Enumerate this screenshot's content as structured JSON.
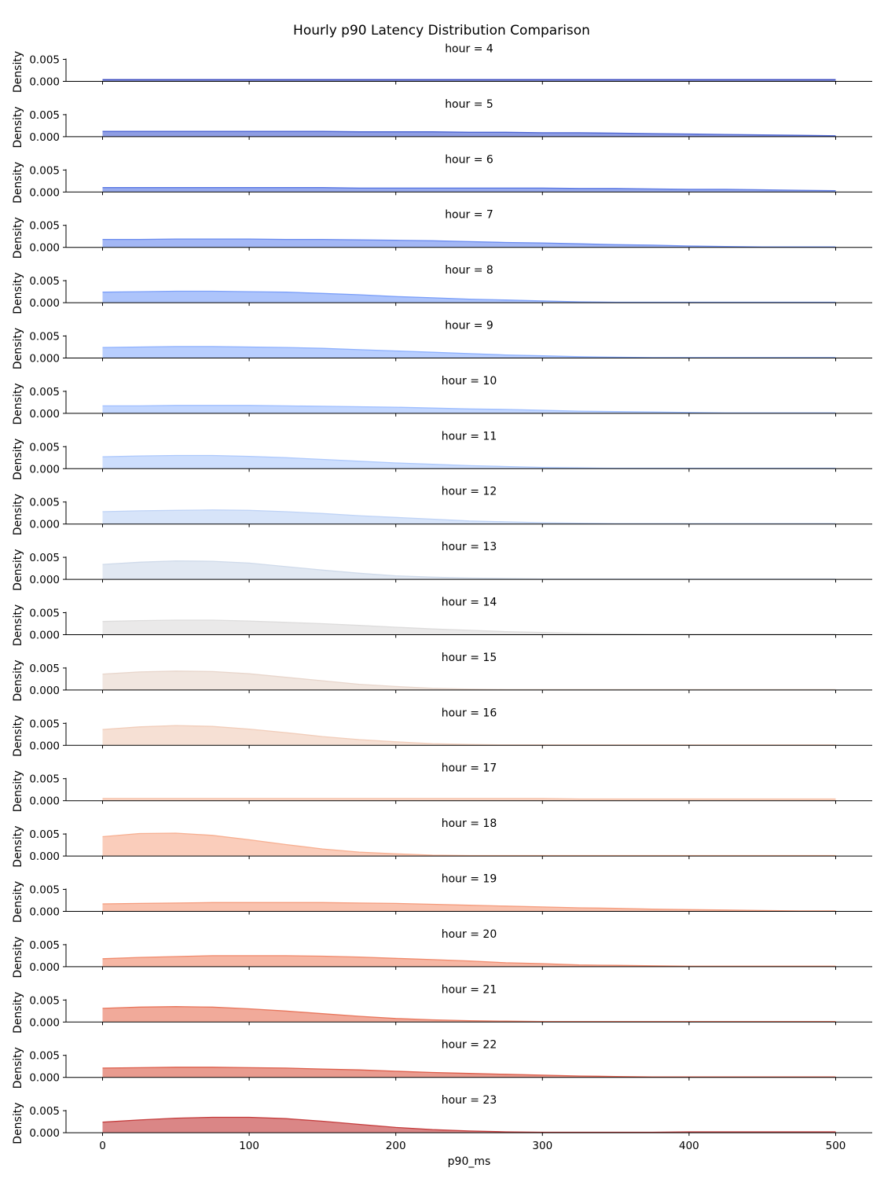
{
  "chart_data": {
    "type": "area",
    "title": "Hourly p90 Latency Distribution Comparison",
    "xlabel": "p90_ms",
    "ylabel": "Density",
    "xlim": [
      -25,
      525
    ],
    "xticks": [
      "0",
      "100",
      "200",
      "300",
      "400",
      "500"
    ],
    "ylim": [
      0,
      0.0055
    ],
    "yticks": [
      "0.000",
      "0.005"
    ],
    "grid": false,
    "legend": "none",
    "x": [
      0,
      25,
      50,
      75,
      100,
      125,
      150,
      175,
      200,
      225,
      250,
      275,
      300,
      325,
      350,
      375,
      400,
      425,
      450,
      475,
      500
    ],
    "series": [
      {
        "name": "hour = 4",
        "color": "#3b4cc0",
        "values": [
          0.0004,
          0.0004,
          0.0004,
          0.0004,
          0.0004,
          0.0004,
          0.0004,
          0.0004,
          0.0004,
          0.0004,
          0.0004,
          0.0004,
          0.0004,
          0.0004,
          0.0004,
          0.0004,
          0.0004,
          0.0004,
          0.0004,
          0.0004,
          0.0004
        ]
      },
      {
        "name": "hour = 5",
        "color": "#4a63d3",
        "values": [
          0.0012,
          0.0012,
          0.0012,
          0.0012,
          0.0012,
          0.0012,
          0.0012,
          0.0011,
          0.0011,
          0.0011,
          0.001,
          0.001,
          0.0009,
          0.0009,
          0.0008,
          0.0007,
          0.0006,
          0.0005,
          0.0004,
          0.0003,
          0.0002
        ]
      },
      {
        "name": "hour = 6",
        "color": "#5977e3",
        "values": [
          0.001,
          0.001,
          0.001,
          0.001,
          0.001,
          0.001,
          0.001,
          0.0009,
          0.0009,
          0.0009,
          0.0009,
          0.0009,
          0.0009,
          0.0008,
          0.0008,
          0.0007,
          0.0006,
          0.0006,
          0.0005,
          0.0004,
          0.0003
        ]
      },
      {
        "name": "hour = 7",
        "color": "#6a8bef",
        "values": [
          0.0018,
          0.0018,
          0.0019,
          0.0019,
          0.0019,
          0.0018,
          0.0018,
          0.0017,
          0.0016,
          0.0015,
          0.0013,
          0.0011,
          0.001,
          0.0008,
          0.0006,
          0.0005,
          0.0003,
          0.0002,
          0.0001,
          0.0001,
          0.0001
        ]
      },
      {
        "name": "hour = 8",
        "color": "#7b9ff9",
        "values": [
          0.0024,
          0.0025,
          0.0026,
          0.0026,
          0.0025,
          0.0024,
          0.0021,
          0.0018,
          0.0014,
          0.0011,
          0.0008,
          0.0006,
          0.0004,
          0.0002,
          0.0001,
          0.0001,
          0.0001,
          0.0001,
          0.0001,
          0.0001,
          0.0001
        ]
      },
      {
        "name": "hour = 9",
        "color": "#8db0fe",
        "values": [
          0.0024,
          0.0025,
          0.0026,
          0.0026,
          0.0025,
          0.0024,
          0.0022,
          0.0019,
          0.0016,
          0.0013,
          0.001,
          0.0007,
          0.0005,
          0.0003,
          0.0002,
          0.0001,
          0.0001,
          0.0001,
          0.0001,
          0.0001,
          0.0001
        ]
      },
      {
        "name": "hour = 10",
        "color": "#9ebeff",
        "values": [
          0.0017,
          0.0017,
          0.0018,
          0.0018,
          0.0018,
          0.0017,
          0.0016,
          0.0015,
          0.0014,
          0.0012,
          0.001,
          0.0009,
          0.0007,
          0.0005,
          0.0004,
          0.0003,
          0.0002,
          0.0001,
          0.0001,
          0.0001,
          0.0001
        ]
      },
      {
        "name": "hour = 11",
        "color": "#aec9fc",
        "values": [
          0.0027,
          0.0029,
          0.003,
          0.003,
          0.0028,
          0.0025,
          0.0021,
          0.0017,
          0.0013,
          0.001,
          0.0007,
          0.0005,
          0.0003,
          0.0002,
          0.0001,
          0.0001,
          0.0001,
          0.0001,
          0.0001,
          0.0001,
          0.0001
        ]
      },
      {
        "name": "hour = 12",
        "color": "#bfd3f6",
        "values": [
          0.0028,
          0.003,
          0.0031,
          0.0032,
          0.0031,
          0.0028,
          0.0024,
          0.0019,
          0.0015,
          0.0011,
          0.0007,
          0.0005,
          0.0003,
          0.0002,
          0.0001,
          0.0001,
          0.0001,
          0.0001,
          0.0001,
          0.0001,
          0.0001
        ]
      },
      {
        "name": "hour = 13",
        "color": "#cfdaea",
        "values": [
          0.0034,
          0.0039,
          0.0042,
          0.0041,
          0.0037,
          0.0029,
          0.0021,
          0.0014,
          0.0008,
          0.0005,
          0.0003,
          0.0002,
          0.0001,
          0.0001,
          0.0001,
          0.0001,
          0.0001,
          0.0001,
          0.0001,
          0.0001,
          0.0001
        ]
      },
      {
        "name": "hour = 14",
        "color": "#dddcdc",
        "values": [
          0.003,
          0.0032,
          0.0033,
          0.0033,
          0.0031,
          0.0028,
          0.0025,
          0.0021,
          0.0017,
          0.0013,
          0.001,
          0.0007,
          0.0005,
          0.0003,
          0.0002,
          0.0001,
          0.0001,
          0.0001,
          0.0001,
          0.0001,
          0.0001
        ]
      },
      {
        "name": "hour = 15",
        "color": "#e8d6cc",
        "values": [
          0.0036,
          0.0041,
          0.0043,
          0.0042,
          0.0037,
          0.0029,
          0.0021,
          0.0013,
          0.0008,
          0.0004,
          0.0002,
          0.0001,
          0.0001,
          0.0001,
          0.0001,
          0.0001,
          0.0001,
          0.0001,
          0.0001,
          0.0001,
          0.0001
        ]
      },
      {
        "name": "hour = 16",
        "color": "#f1cdba",
        "values": [
          0.0036,
          0.0042,
          0.0045,
          0.0043,
          0.0037,
          0.0029,
          0.002,
          0.0013,
          0.0008,
          0.0004,
          0.0002,
          0.0001,
          0.0001,
          0.0001,
          0.0001,
          0.0001,
          0.0001,
          0.0001,
          0.0001,
          0.0001,
          0.0001
        ]
      },
      {
        "name": "hour = 17",
        "color": "#f6bfa6",
        "values": [
          0.0005,
          0.0005,
          0.0005,
          0.0005,
          0.0005,
          0.0005,
          0.0005,
          0.0005,
          0.0005,
          0.0005,
          0.0005,
          0.0005,
          0.0005,
          0.0004,
          0.0004,
          0.0004,
          0.0004,
          0.0004,
          0.0004,
          0.0004,
          0.0004
        ]
      },
      {
        "name": "hour = 18",
        "color": "#f7af91",
        "values": [
          0.0044,
          0.0051,
          0.0052,
          0.0047,
          0.0037,
          0.0026,
          0.0016,
          0.0009,
          0.0005,
          0.0002,
          0.0001,
          0.0001,
          0.0001,
          0.0001,
          0.0001,
          0.0001,
          0.0001,
          0.0001,
          0.0001,
          0.0001,
          0.0001
        ]
      },
      {
        "name": "hour = 19",
        "color": "#f59c7d",
        "values": [
          0.0017,
          0.0018,
          0.0019,
          0.002,
          0.002,
          0.002,
          0.002,
          0.0019,
          0.0018,
          0.0016,
          0.0014,
          0.0012,
          0.001,
          0.0008,
          0.0007,
          0.0005,
          0.0004,
          0.0003,
          0.0002,
          0.0001,
          0.0001
        ]
      },
      {
        "name": "hour = 20",
        "color": "#f08a6c",
        "values": [
          0.0018,
          0.0021,
          0.0023,
          0.0025,
          0.0025,
          0.0025,
          0.0024,
          0.0022,
          0.0019,
          0.0016,
          0.0013,
          0.0009,
          0.0007,
          0.0004,
          0.0003,
          0.0002,
          0.0001,
          0.0001,
          0.0001,
          0.0001,
          0.0001
        ]
      },
      {
        "name": "hour = 21",
        "color": "#e8765c",
        "values": [
          0.0031,
          0.0034,
          0.0035,
          0.0034,
          0.003,
          0.0025,
          0.0019,
          0.0013,
          0.0008,
          0.0005,
          0.0003,
          0.0002,
          0.0001,
          0.0001,
          0.0001,
          0.0001,
          0.0001,
          0.0001,
          0.0001,
          0.0001,
          0.0001
        ]
      },
      {
        "name": "hour = 22",
        "color": "#dc5d4a",
        "values": [
          0.0021,
          0.0022,
          0.0023,
          0.0023,
          0.0022,
          0.0021,
          0.0019,
          0.0017,
          0.0014,
          0.0011,
          0.0009,
          0.0007,
          0.0005,
          0.0003,
          0.0002,
          0.0001,
          0.0001,
          0.0001,
          0.0001,
          0.0001,
          0.0001
        ]
      },
      {
        "name": "hour = 23",
        "color": "#c43c3c",
        "values": [
          0.0024,
          0.0029,
          0.0033,
          0.0035,
          0.0035,
          0.0032,
          0.0026,
          0.0019,
          0.0012,
          0.0007,
          0.0004,
          0.0002,
          0.0001,
          0.0001,
          0.0001,
          0.0001,
          0.0002,
          0.0002,
          0.0002,
          0.0002,
          0.0002
        ]
      }
    ]
  }
}
